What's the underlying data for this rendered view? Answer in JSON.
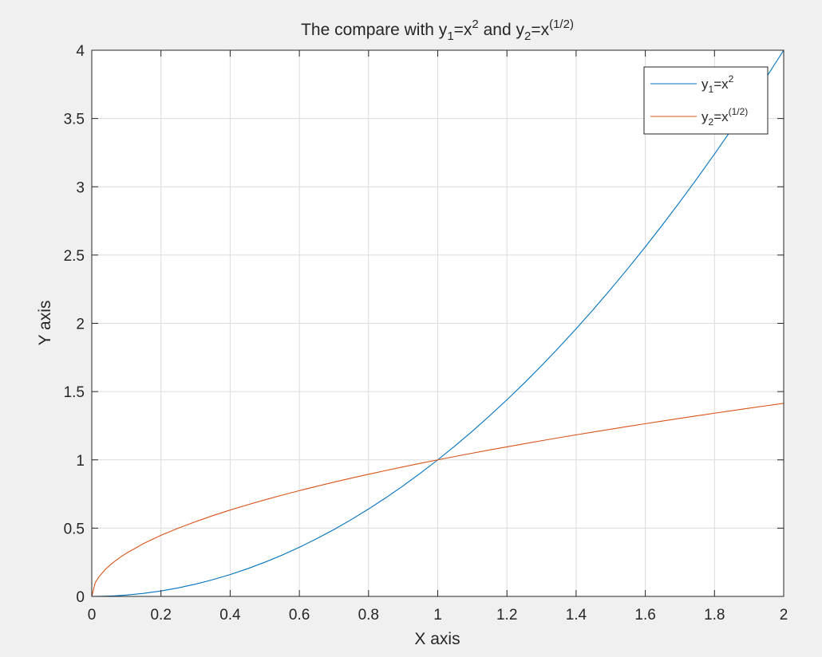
{
  "chart_data": {
    "type": "line",
    "title": {
      "prefix": "The compare with y",
      "sub1": "1",
      "mid1": "=x",
      "sup1": "2",
      "mid2": " and y",
      "sub2": "2",
      "mid3": "=x",
      "sup2": "(1/2)"
    },
    "xlabel": "X axis",
    "ylabel": "Y axis",
    "xlim": [
      0,
      2
    ],
    "ylim": [
      0,
      4
    ],
    "xticks": [
      "0",
      "0.2",
      "0.4",
      "0.6",
      "0.8",
      "1",
      "1.2",
      "1.4",
      "1.6",
      "1.8",
      "2"
    ],
    "yticks": [
      "0",
      "0.5",
      "1",
      "1.5",
      "2",
      "2.5",
      "3",
      "3.5",
      "4"
    ],
    "grid": true,
    "legend_position": "top-right",
    "x": [
      0,
      0.01,
      0.02,
      0.04,
      0.06,
      0.08,
      0.1,
      0.15,
      0.2,
      0.25,
      0.3,
      0.35,
      0.4,
      0.45,
      0.5,
      0.55,
      0.6,
      0.65,
      0.7,
      0.75,
      0.8,
      0.85,
      0.9,
      0.95,
      1,
      1.05,
      1.1,
      1.15,
      1.2,
      1.25,
      1.3,
      1.35,
      1.4,
      1.45,
      1.5,
      1.55,
      1.6,
      1.65,
      1.7,
      1.75,
      1.8,
      1.85,
      1.9,
      1.95,
      2
    ],
    "series": [
      {
        "legend": {
          "base": "y",
          "sub": "1",
          "mid": "=x",
          "sup": "2"
        },
        "color": "#0072BD",
        "values": [
          0,
          0.0001,
          0.0004,
          0.0016,
          0.0036,
          0.0064,
          0.01,
          0.0225,
          0.04,
          0.0625,
          0.09,
          0.1225,
          0.16,
          0.2025,
          0.25,
          0.3025,
          0.36,
          0.4225,
          0.49,
          0.5625,
          0.64,
          0.7225,
          0.81,
          0.9025,
          1,
          1.1025,
          1.21,
          1.3225,
          1.44,
          1.5625,
          1.69,
          1.8225,
          1.96,
          2.1025,
          2.25,
          2.4025,
          2.56,
          2.7225,
          2.89,
          3.0625,
          3.24,
          3.4225,
          3.61,
          3.8025,
          4
        ]
      },
      {
        "legend": {
          "base": "y",
          "sub": "2",
          "mid": "=x",
          "sup": "(1/2)"
        },
        "color": "#D95319",
        "values": [
          0,
          0.1,
          0.1414,
          0.2,
          0.2449,
          0.2828,
          0.3162,
          0.3873,
          0.4472,
          0.5,
          0.5477,
          0.5916,
          0.6325,
          0.6708,
          0.7071,
          0.7416,
          0.7746,
          0.8062,
          0.8367,
          0.866,
          0.8944,
          0.922,
          0.9487,
          0.9747,
          1,
          1.0247,
          1.0488,
          1.0724,
          1.0954,
          1.118,
          1.1402,
          1.1619,
          1.1832,
          1.2042,
          1.2247,
          1.245,
          1.2649,
          1.2845,
          1.3038,
          1.3229,
          1.3416,
          1.3601,
          1.3784,
          1.3964,
          1.4142
        ]
      }
    ]
  }
}
